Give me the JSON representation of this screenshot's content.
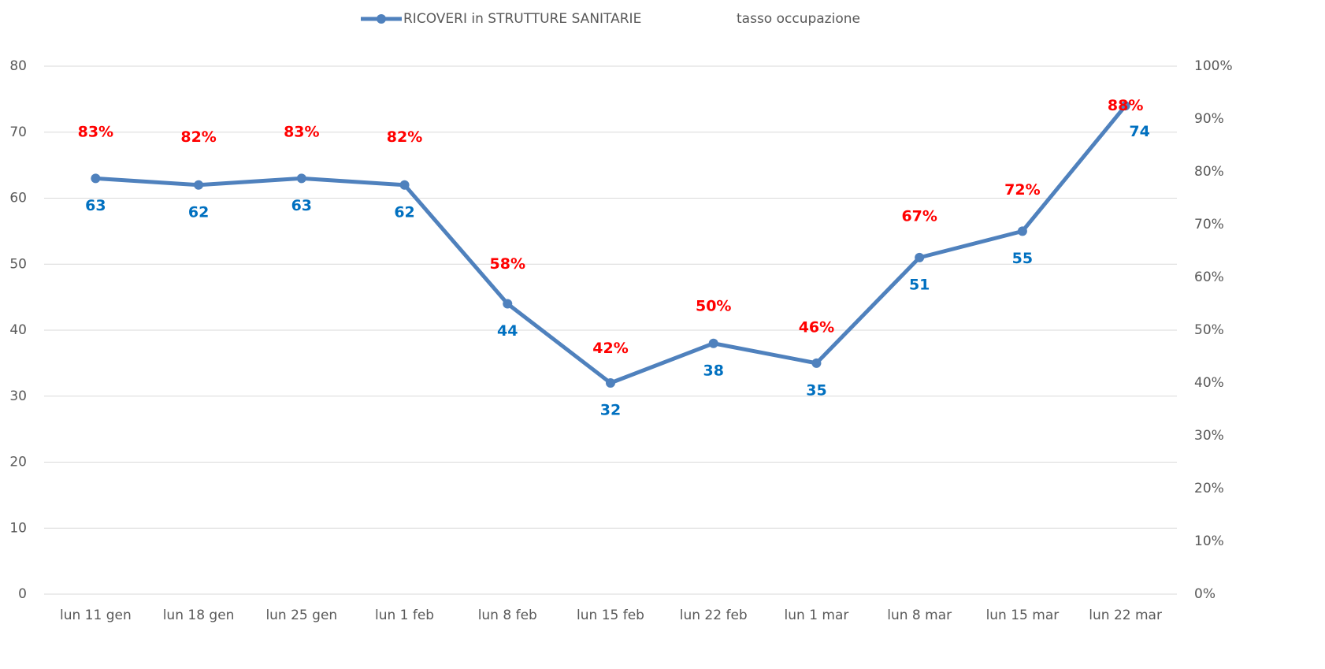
{
  "chart_data": {
    "type": "line",
    "categories": [
      "lun 11 gen",
      "lun 18 gen",
      "lun 25 gen",
      "lun 1 feb",
      "lun 8 feb",
      "lun 15 feb",
      "lun 22 feb",
      "lun 1 mar",
      "lun 8 mar",
      "lun 15 mar",
      "lun 22 mar"
    ],
    "series": [
      {
        "name": "RICOVERI in STRUTTURE SANITARIE",
        "color": "#4f81bd",
        "label_color": "#0070c0",
        "values": [
          63,
          62,
          63,
          62,
          44,
          32,
          38,
          35,
          51,
          55,
          74
        ]
      },
      {
        "name": "tasso occupazione",
        "axis": "y2",
        "label_color": "#ff0000",
        "values": [
          83,
          82,
          83,
          82,
          58,
          42,
          50,
          46,
          67,
          72,
          88
        ],
        "value_labels": [
          "83%",
          "82%",
          "83%",
          "82%",
          "58%",
          "42%",
          "50%",
          "46%",
          "67%",
          "72%",
          "88%"
        ]
      }
    ],
    "ylim": [
      0,
      80
    ],
    "yticks": [
      0,
      10,
      20,
      30,
      40,
      50,
      60,
      70,
      80
    ],
    "y2lim": [
      0,
      100
    ],
    "y2ticks": [
      {
        "value": 0,
        "label": "0%"
      },
      {
        "value": 10,
        "label": "10%"
      },
      {
        "value": 20,
        "label": "20%"
      },
      {
        "value": 30,
        "label": "30%"
      },
      {
        "value": 40,
        "label": "40%"
      },
      {
        "value": 50,
        "label": "50%"
      },
      {
        "value": 60,
        "label": "60%"
      },
      {
        "value": 70,
        "label": "70%"
      },
      {
        "value": 80,
        "label": "80%"
      },
      {
        "value": 90,
        "label": "90%"
      },
      {
        "value": 100,
        "label": "100%"
      }
    ],
    "grid": true
  }
}
